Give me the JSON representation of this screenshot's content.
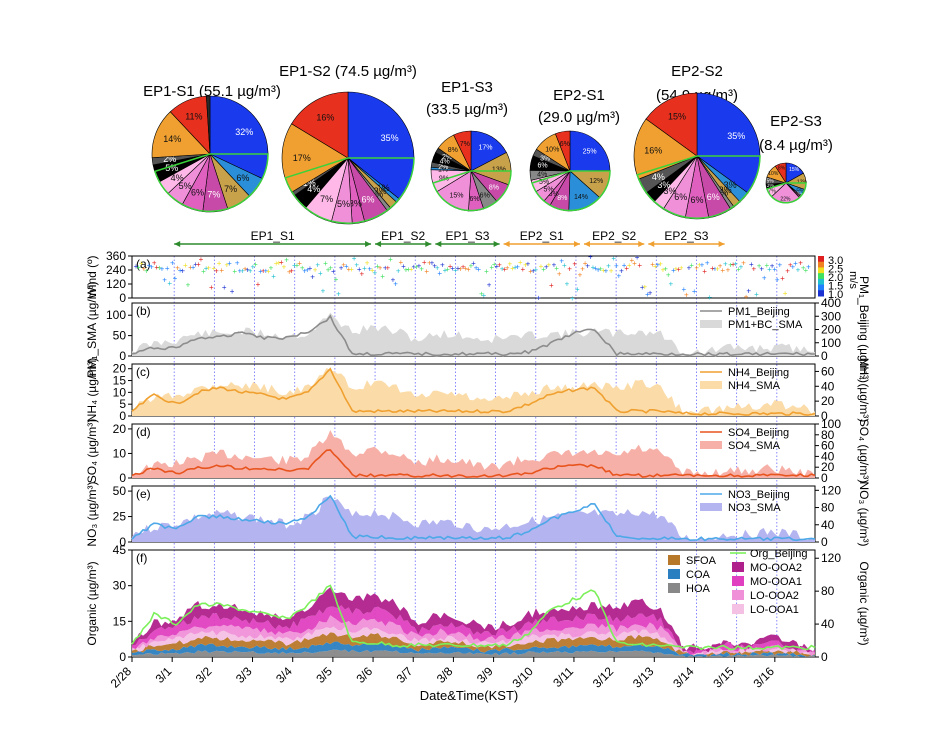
{
  "figure": {
    "xlabel": "Date&Time(KST)"
  },
  "colors": {
    "ep1": "#2e8b2e",
    "ep2": "#f0a030",
    "pm1_line": "#8c8c8c",
    "pm1_fill": "#d9d9d9",
    "nh4_line": "#f0a030",
    "nh4_fill": "#fbdca8",
    "so4_line": "#e8541e",
    "so4_fill": "#f6b0a8",
    "no3_line": "#4da8e8",
    "no3_fill": "#b4b4f0",
    "org_line": "#7cf05a",
    "vline": "#6a6aff"
  },
  "chart_data": [
    {
      "type": "pie",
      "title": "EP1-S1 (55.1 µg/m³)",
      "total": 55.1,
      "slices": [
        {
          "color": "#1a3aee",
          "value": 32,
          "label": "32%"
        },
        {
          "color": "#2a8fd8",
          "value": 6,
          "label": "6%"
        },
        {
          "color": "#c8a24a",
          "value": 7,
          "label": "7%"
        },
        {
          "color": "#c84aa8",
          "value": 7,
          "label": "7%"
        },
        {
          "color": "#e060c0",
          "value": 6,
          "label": "6%"
        },
        {
          "color": "#f090d8",
          "value": 5,
          "label": "5%"
        },
        {
          "color": "#ffb8e8",
          "value": 4,
          "label": "4%"
        },
        {
          "color": "#000000",
          "value": 5,
          "label": "5%"
        },
        {
          "color": "#555555",
          "value": 2,
          "label": "2%"
        },
        {
          "color": "#f0a030",
          "value": 14,
          "label": "14%"
        },
        {
          "color": "#e8301e",
          "value": 11,
          "label": "11%"
        },
        {
          "color": "#2a2a2a",
          "value": 1,
          "label": ""
        }
      ]
    },
    {
      "type": "pie",
      "title": "EP1-S2 (74.5 µg/m³)",
      "total": 74.5,
      "slices": [
        {
          "color": "#1a3aee",
          "value": 35,
          "label": "35%"
        },
        {
          "color": "#2a8fd8",
          "value": 1,
          "label": "1%"
        },
        {
          "color": "#c8a24a",
          "value": 2,
          "label": "2%"
        },
        {
          "color": "#888888",
          "value": 1,
          "label": "1%"
        },
        {
          "color": "#c84aa8",
          "value": 6,
          "label": "6%"
        },
        {
          "color": "#e060c0",
          "value": 3,
          "label": "3%"
        },
        {
          "color": "#f090d8",
          "value": 5,
          "label": "5%"
        },
        {
          "color": "#ffb8e8",
          "value": 7,
          "label": "7%"
        },
        {
          "color": "#000000",
          "value": 4,
          "label": "4%"
        },
        {
          "color": "#555555",
          "value": 1,
          "label": "1%"
        },
        {
          "color": "#f0a030",
          "value": 17,
          "label": "17%"
        },
        {
          "color": "#e8301e",
          "value": 16,
          "label": "16%"
        }
      ]
    },
    {
      "type": "pie",
      "title": "EP1-S3",
      "subtitle": "(33.5 µg/m³)",
      "total": 33.5,
      "slices": [
        {
          "color": "#1a3aee",
          "value": 17,
          "label": "17%"
        },
        {
          "color": "#c8a24a",
          "value": 13,
          "label": "13%"
        },
        {
          "color": "#c84aa8",
          "value": 8,
          "label": "8%"
        },
        {
          "color": "#888888",
          "value": 6,
          "label": "6%"
        },
        {
          "color": "#e060c0",
          "value": 6,
          "label": "6%"
        },
        {
          "color": "#f090d8",
          "value": 15,
          "label": "15%"
        },
        {
          "color": "#ffb8e8",
          "value": 9,
          "label": "9%"
        },
        {
          "color": "#2a8fd8",
          "value": 1,
          "label": "1%"
        },
        {
          "color": "#555555",
          "value": 2,
          "label": "2%"
        },
        {
          "color": "#000000",
          "value": 4,
          "label": "4%"
        },
        {
          "color": "#333333",
          "value": 2,
          "label": "2%"
        },
        {
          "color": "#f0a030",
          "value": 8,
          "label": "8%"
        },
        {
          "color": "#e8301e",
          "value": 7,
          "label": "7%"
        }
      ]
    },
    {
      "type": "pie",
      "title": "EP2-S1",
      "subtitle": "(29.0 µg/m³)",
      "total": 29.0,
      "slices": [
        {
          "color": "#1a3aee",
          "value": 25,
          "label": "25%"
        },
        {
          "color": "#c8a24a",
          "value": 12,
          "label": "12%"
        },
        {
          "color": "#2a8fd8",
          "value": 14,
          "label": "14%"
        },
        {
          "color": "#c84aa8",
          "value": 8,
          "label": "8%"
        },
        {
          "color": "#e060c0",
          "value": 3,
          "label": "3%"
        },
        {
          "color": "#f090d8",
          "value": 5,
          "label": "5%"
        },
        {
          "color": "#ffb8e8",
          "value": 5,
          "label": "5%"
        },
        {
          "color": "#888888",
          "value": 4,
          "label": "4%"
        },
        {
          "color": "#000000",
          "value": 6,
          "label": "6%"
        },
        {
          "color": "#555555",
          "value": 3,
          "label": "3%"
        },
        {
          "color": "#f0a030",
          "value": 10,
          "label": "10%"
        },
        {
          "color": "#e8301e",
          "value": 6,
          "label": "6%"
        }
      ]
    },
    {
      "type": "pie",
      "title": "EP2-S2",
      "subtitle": "(54.9 µg/m³)",
      "total": 54.9,
      "slices": [
        {
          "color": "#1a3aee",
          "value": 35,
          "label": "35%"
        },
        {
          "color": "#2a8fd8",
          "value": 3,
          "label": "3%"
        },
        {
          "color": "#c8a24a",
          "value": 2,
          "label": "2%"
        },
        {
          "color": "#888888",
          "value": 1,
          "label": "1%"
        },
        {
          "color": "#c84aa8",
          "value": 6,
          "label": "6%"
        },
        {
          "color": "#e060c0",
          "value": 6,
          "label": "6%"
        },
        {
          "color": "#f090d8",
          "value": 6,
          "label": "6%"
        },
        {
          "color": "#ffb8e8",
          "value": 3,
          "label": "3%"
        },
        {
          "color": "#000000",
          "value": 3,
          "label": "3%"
        },
        {
          "color": "#555555",
          "value": 4,
          "label": "4%"
        },
        {
          "color": "#f0a030",
          "value": 16,
          "label": "16%"
        },
        {
          "color": "#e8301e",
          "value": 15,
          "label": "15%"
        }
      ]
    },
    {
      "type": "pie",
      "title": "EP2-S3",
      "subtitle": "(8.4 µg/m³)",
      "total": 8.4,
      "slices": [
        {
          "color": "#1a3aee",
          "value": 15,
          "label": "15%"
        },
        {
          "color": "#c8a24a",
          "value": 12,
          "label": "12%"
        },
        {
          "color": "#2a8fd8",
          "value": 5,
          "label": "5%"
        },
        {
          "color": "#c84aa8",
          "value": 1,
          "label": "1%"
        },
        {
          "color": "#e060c0",
          "value": 1,
          "label": "1%"
        },
        {
          "color": "#f090d8",
          "value": 22,
          "label": "22%"
        },
        {
          "color": "#ffb8e8",
          "value": 7,
          "label": "7%"
        },
        {
          "color": "#000000",
          "value": 3,
          "label": "3%"
        },
        {
          "color": "#555555",
          "value": 5,
          "label": "5%"
        },
        {
          "color": "#f0a030",
          "value": 10,
          "label": "10%"
        },
        {
          "color": "#e8301e",
          "value": 8,
          "label": "8%"
        }
      ]
    },
    {
      "type": "line",
      "panel": "(a)",
      "title": "",
      "ylabel_left": "Wind (º)",
      "yticks_left": [
        "360",
        "240",
        "120",
        "0"
      ],
      "ylim_left": [
        0,
        360
      ],
      "colorbar": {
        "title": "m/s",
        "ticks": [
          "3.0",
          "2.5",
          "2.0",
          "1.5",
          "1.0"
        ],
        "range": [
          1.0,
          3.0
        ]
      },
      "periods": [
        {
          "name": "EP1_S1",
          "start": 1,
          "end": 6,
          "group": "EP1"
        },
        {
          "name": "EP1_S2",
          "start": 6,
          "end": 7.5,
          "group": "EP1"
        },
        {
          "name": "EP1_S3",
          "start": 7.5,
          "end": 9.2,
          "group": "EP1"
        },
        {
          "name": "EP2_S1",
          "start": 9.2,
          "end": 11.2,
          "group": "EP2"
        },
        {
          "name": "EP2_S2",
          "start": 11.2,
          "end": 12.8,
          "group": "EP2"
        },
        {
          "name": "EP2_S3",
          "start": 12.8,
          "end": 14.8,
          "group": "EP2"
        }
      ]
    },
    {
      "type": "area",
      "panel": "(b)",
      "ylabel": "PM₁_SMA (µg/m³)",
      "ylabel_right": "PM₁_Beijing (µg/m³)",
      "yticks": [
        "100",
        "50",
        "0"
      ],
      "ylim": [
        0,
        130
      ],
      "yticks_right": [
        "400",
        "300",
        "200",
        "100",
        "0"
      ],
      "ylim_right": [
        0,
        400
      ],
      "series": [
        {
          "name": "PM1_Beijing",
          "kind": "line",
          "values": [
            5,
            20,
            20,
            45,
            45,
            60,
            45,
            45,
            60,
            95,
            5,
            5,
            5,
            5,
            5,
            5,
            5,
            5,
            10,
            30,
            55,
            65,
            5,
            5,
            5,
            5,
            5,
            5,
            5,
            5,
            5,
            5
          ]
        },
        {
          "name": "PM1+BC_SMA",
          "kind": "fill",
          "values": [
            15,
            30,
            40,
            55,
            55,
            60,
            55,
            50,
            55,
            100,
            60,
            70,
            60,
            40,
            55,
            50,
            40,
            45,
            50,
            55,
            55,
            60,
            55,
            60,
            55,
            10,
            10,
            20,
            20,
            20,
            20,
            10
          ]
        }
      ]
    },
    {
      "type": "area",
      "panel": "(c)",
      "ylabel": "NH₄ (µg/m³)",
      "ylabel_right": "NH₄ (µg/m³)",
      "yticks": [
        "20",
        "15",
        "10",
        "5",
        "0"
      ],
      "ylim": [
        0,
        22
      ],
      "yticks_right": [
        "60",
        "40",
        "20",
        "0"
      ],
      "ylim_right": [
        0,
        70
      ],
      "series": [
        {
          "name": "NH4_Beijing",
          "kind": "line",
          "values": [
            2,
            9,
            5,
            10,
            12,
            10,
            9,
            7,
            10,
            20,
            2,
            2,
            2,
            2,
            2,
            2,
            2,
            2,
            5,
            9,
            11,
            12,
            2,
            2,
            2,
            1,
            1,
            1,
            1,
            1,
            1,
            1
          ]
        },
        {
          "name": "NH4_SMA",
          "kind": "fill",
          "values": [
            3,
            8,
            9,
            12,
            14,
            13,
            12,
            10,
            12,
            20,
            12,
            14,
            12,
            8,
            10,
            9,
            6,
            8,
            10,
            12,
            12,
            13,
            12,
            14,
            12,
            2,
            2,
            4,
            4,
            5,
            4,
            2
          ]
        }
      ]
    },
    {
      "type": "area",
      "panel": "(d)",
      "ylabel": "SO₄ (µg/m³)",
      "ylabel_right": "SO₄ (µg/m³)",
      "yticks": [
        "20",
        "10",
        "0"
      ],
      "ylim": [
        0,
        22
      ],
      "yticks_right": [
        "100",
        "80",
        "60",
        "40",
        "20",
        "0"
      ],
      "ylim_right": [
        0,
        100
      ],
      "series": [
        {
          "name": "SO4_Beijing",
          "kind": "line",
          "values": [
            1,
            4,
            2,
            4,
            5,
            4,
            4,
            3,
            4,
            12,
            1,
            1,
            1,
            1,
            1,
            1,
            1,
            1,
            2,
            4,
            5,
            5,
            1,
            1,
            1,
            1,
            1,
            1,
            1,
            1,
            1,
            1
          ]
        },
        {
          "name": "SO4_SMA",
          "kind": "fill",
          "values": [
            2,
            5,
            6,
            8,
            10,
            9,
            8,
            7,
            9,
            18,
            10,
            12,
            10,
            6,
            8,
            7,
            4,
            6,
            8,
            9,
            10,
            10,
            9,
            12,
            10,
            2,
            2,
            3,
            3,
            4,
            3,
            1
          ]
        }
      ]
    },
    {
      "type": "area",
      "panel": "(e)",
      "ylabel": "NO₃ (µg/m³)",
      "ylabel_right": "NO₃ (µg/m³)",
      "yticks": [
        "50",
        "25",
        "0"
      ],
      "ylim": [
        0,
        55
      ],
      "yticks_right": [
        "120",
        "80",
        "40",
        "0"
      ],
      "ylim_right": [
        0,
        130
      ],
      "series": [
        {
          "name": "NO3_Beijing",
          "kind": "line",
          "values": [
            3,
            18,
            12,
            25,
            25,
            22,
            20,
            18,
            25,
            45,
            5,
            5,
            4,
            4,
            4,
            4,
            4,
            4,
            10,
            22,
            30,
            38,
            5,
            4,
            4,
            3,
            3,
            3,
            3,
            3,
            3,
            3
          ]
        },
        {
          "name": "NO3_SMA",
          "kind": "fill",
          "values": [
            8,
            15,
            18,
            25,
            28,
            26,
            22,
            18,
            24,
            45,
            25,
            30,
            25,
            18,
            20,
            18,
            12,
            16,
            20,
            24,
            26,
            28,
            26,
            30,
            26,
            4,
            4,
            8,
            8,
            10,
            8,
            3
          ]
        }
      ]
    },
    {
      "type": "area",
      "panel": "(f)",
      "ylabel": "Organic (µg/m³)",
      "ylabel_right": "Organic (µg/m³)",
      "yticks": [
        "45",
        "30",
        "15",
        "0"
      ],
      "ylim": [
        0,
        45
      ],
      "yticks_right": [
        "120",
        "80",
        "40",
        "0"
      ],
      "ylim_right": [
        0,
        130
      ],
      "stacked_series": [
        {
          "name": "HOA",
          "color": "#888888"
        },
        {
          "name": "COA",
          "color": "#2a7fc0"
        },
        {
          "name": "SFOA",
          "color": "#b8782a"
        },
        {
          "name": "LO-OOA1",
          "color": "#f4c0e4"
        },
        {
          "name": "LO-OOA2",
          "color": "#f090d8"
        },
        {
          "name": "MO-OOA1",
          "color": "#e040c0"
        },
        {
          "name": "MO-OOA2",
          "color": "#b0208c"
        }
      ],
      "stack_totals": [
        6,
        14,
        16,
        22,
        22,
        20,
        18,
        16,
        20,
        28,
        24,
        26,
        22,
        14,
        18,
        16,
        12,
        14,
        18,
        20,
        20,
        22,
        20,
        24,
        20,
        4,
        4,
        6,
        6,
        8,
        6,
        3
      ],
      "line_series": {
        "name": "Org_Beijing",
        "values": [
          5,
          18,
          14,
          22,
          22,
          20,
          18,
          16,
          22,
          30,
          6,
          6,
          5,
          5,
          5,
          5,
          5,
          5,
          10,
          20,
          24,
          28,
          6,
          5,
          5,
          4,
          4,
          4,
          4,
          4,
          4,
          4
        ]
      },
      "legend": [
        "SFOA",
        "COA",
        "HOA",
        "Org_Beijing",
        "MO-OOA2",
        "MO-OOA1",
        "LO-OOA2",
        "LO-OOA1"
      ]
    },
    {
      "type": "table",
      "name": "x_axis",
      "categories": [
        "2/28",
        "3/1",
        "3/2",
        "3/3",
        "3/4",
        "3/5",
        "3/6",
        "3/7",
        "3/8",
        "3/9",
        "3/10",
        "3/11",
        "3/12",
        "3/13",
        "3/14",
        "3/15",
        "3/16"
      ],
      "xlim": [
        0,
        17
      ]
    }
  ]
}
